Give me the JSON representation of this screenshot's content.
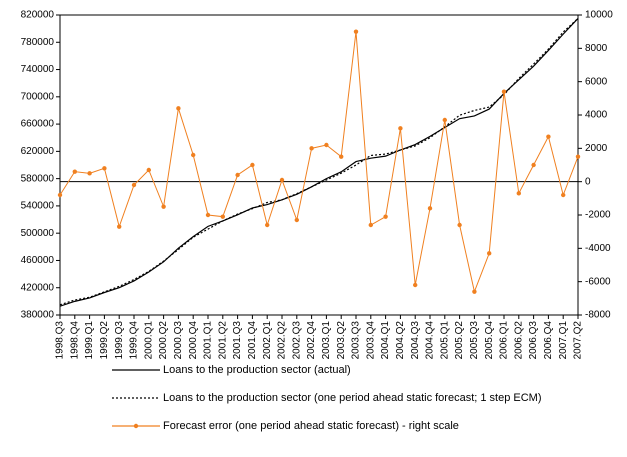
{
  "chart_data": {
    "type": "line",
    "categories": [
      "1998.Q3",
      "1998.Q4",
      "1999.Q1",
      "1999.Q2",
      "1999.Q3",
      "1999.Q4",
      "2000.Q1",
      "2000.Q2",
      "2000.Q3",
      "2000.Q4",
      "2001.Q1",
      "2001.Q2",
      "2001.Q3",
      "2001.Q4",
      "2002.Q1",
      "2002.Q2",
      "2002.Q3",
      "2002.Q4",
      "2003.Q1",
      "2003.Q2",
      "2003.Q3",
      "2003.Q4",
      "2004.Q1",
      "2004.Q2",
      "2004.Q3",
      "2004.Q4",
      "2005.Q1",
      "2005.Q2",
      "2005.Q3",
      "2005.Q4",
      "2006.Q1",
      "2006.Q2",
      "2006.Q3",
      "2006.Q4",
      "2007.Q1",
      "2007.Q2"
    ],
    "series": [
      {
        "name": "Loans to the production sector (actual)",
        "color": "#000000",
        "style": "solid",
        "values": [
          393000,
          400000,
          405000,
          413000,
          420000,
          430000,
          443000,
          458000,
          478000,
          495000,
          510000,
          518000,
          527000,
          537000,
          542000,
          549000,
          557000,
          568000,
          580000,
          590000,
          605000,
          610000,
          613000,
          622000,
          630000,
          642000,
          655000,
          668000,
          672000,
          682000,
          705000,
          725000,
          745000,
          768000,
          792000,
          815000
        ]
      },
      {
        "name": "Loans to the production sector (one period ahead static forecast; 1 step ECM)",
        "color": "#000000",
        "style": "dotted",
        "values": [
          395000,
          402000,
          406000,
          414000,
          422000,
          432000,
          444000,
          459000,
          476000,
          494000,
          506000,
          518000,
          528000,
          536000,
          545000,
          549000,
          558000,
          568000,
          578000,
          588000,
          600000,
          614000,
          616000,
          622000,
          628000,
          640000,
          656000,
          673000,
          680000,
          685000,
          703000,
          727000,
          748000,
          770000,
          795000,
          815000
        ]
      },
      {
        "name": "Forecast error (one period ahead static forecast) - right scale",
        "color": "#f08020",
        "style": "markers",
        "axis": "y2",
        "values": [
          -800,
          600,
          500,
          800,
          -2700,
          -200,
          700,
          -1500,
          4400,
          1600,
          -2000,
          -2100,
          400,
          1000,
          -2600,
          100,
          -2300,
          2000,
          2200,
          1500,
          9000,
          -2600,
          -2100,
          3200,
          -6200,
          -1600,
          3700,
          -2600,
          -6600,
          -4300,
          5400,
          -700,
          1000,
          2700,
          -800,
          1500
        ]
      }
    ],
    "ylim": [
      380000,
      820000
    ],
    "yticks": [
      380000,
      420000,
      460000,
      500000,
      540000,
      580000,
      620000,
      660000,
      700000,
      740000,
      780000,
      820000
    ],
    "y2lim": [
      -8000,
      10000
    ],
    "y2ticks": [
      -8000,
      -6000,
      -4000,
      -2000,
      0,
      2000,
      4000,
      6000,
      8000,
      10000
    ]
  }
}
